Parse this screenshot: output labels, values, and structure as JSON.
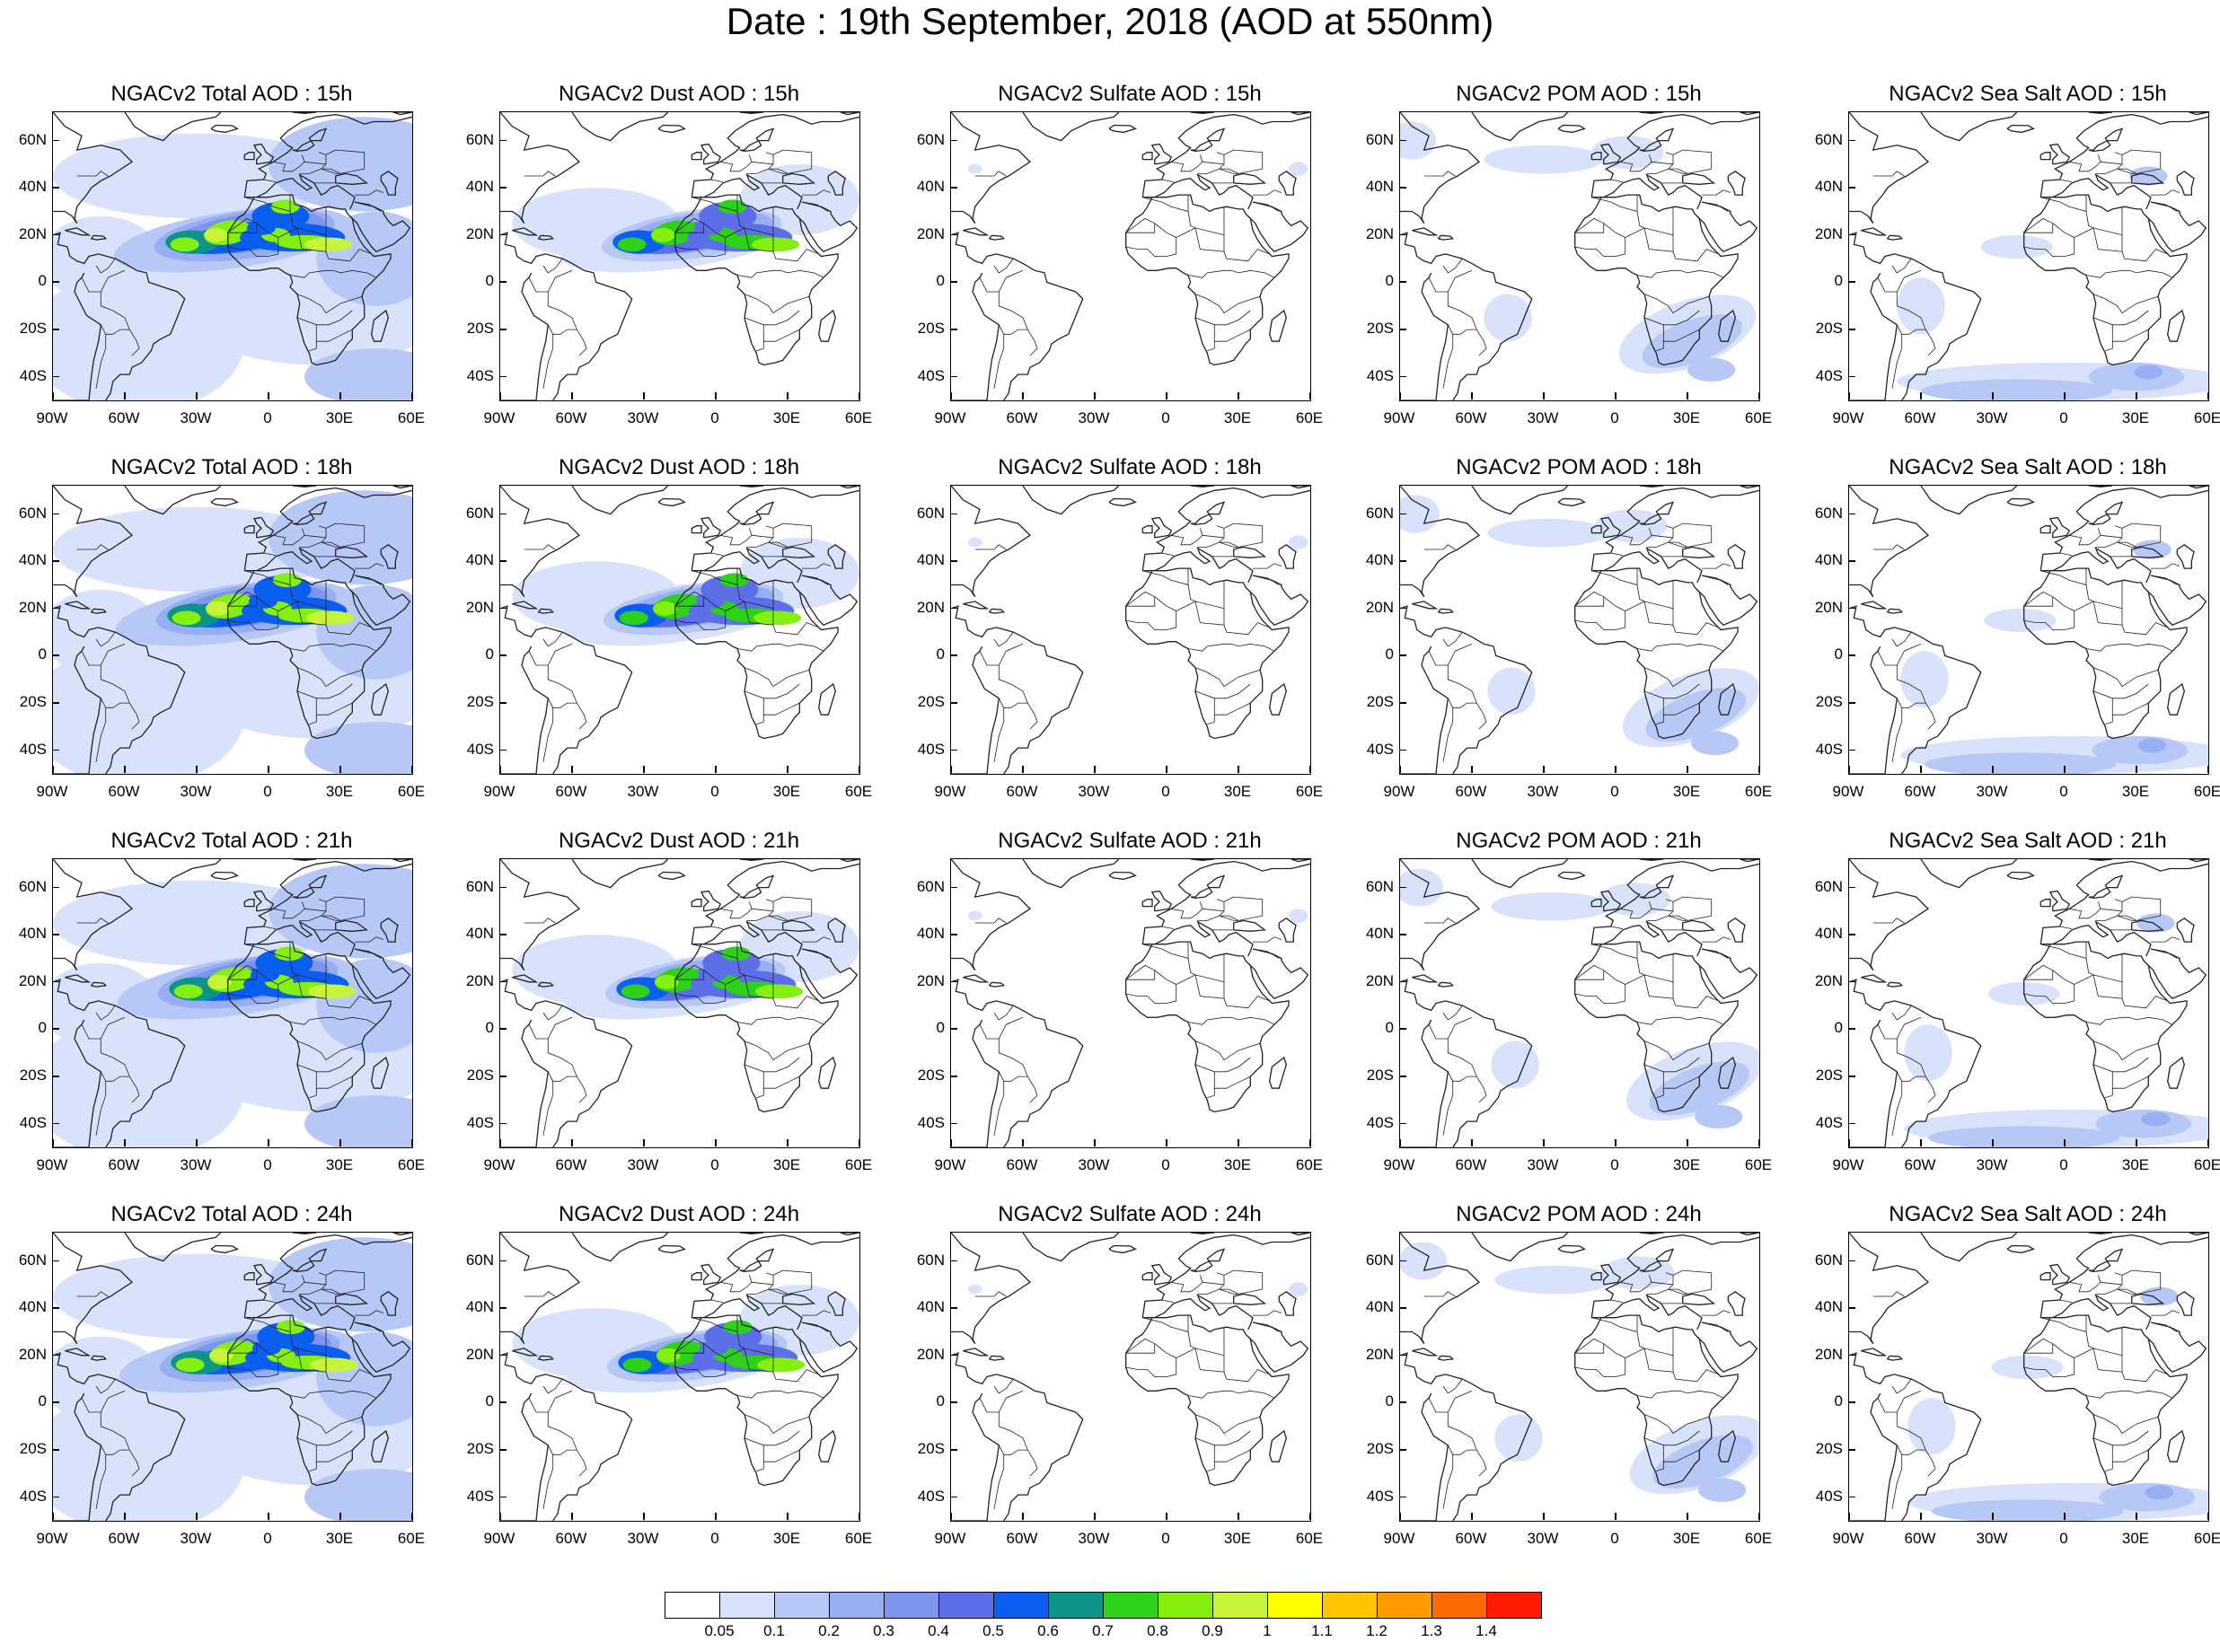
{
  "title": "Date : 19th September, 2018 (AOD at 550nm)",
  "axes": {
    "lat_labels": [
      "60N",
      "40N",
      "20N",
      "0",
      "20S",
      "40S"
    ],
    "lat_values": [
      60,
      40,
      20,
      0,
      -20,
      -40
    ],
    "lon_labels": [
      "90W",
      "60W",
      "30W",
      "0",
      "30E",
      "60E"
    ],
    "lon_values": [
      -90,
      -60,
      -30,
      0,
      30,
      60
    ],
    "lat_range": [
      -50,
      72
    ],
    "lon_range": [
      -90,
      60
    ]
  },
  "rows": [
    {
      "hour": "15h",
      "titles": [
        "NGACv2 Total AOD : 15h",
        "NGACv2 Dust AOD : 15h",
        "NGACv2 Sulfate AOD : 15h",
        "NGACv2 POM AOD : 15h",
        "NGACv2 Sea Salt AOD : 15h"
      ]
    },
    {
      "hour": "18h",
      "titles": [
        "NGACv2 Total AOD : 18h",
        "NGACv2 Dust AOD : 18h",
        "NGACv2 Sulfate AOD : 18h",
        "NGACv2 POM AOD : 18h",
        "NGACv2 Sea Salt AOD : 18h"
      ]
    },
    {
      "hour": "21h",
      "titles": [
        "NGACv2 Total AOD : 21h",
        "NGACv2 Dust AOD : 21h",
        "NGACv2 Sulfate AOD : 21h",
        "NGACv2 POM AOD : 21h",
        "NGACv2 Sea Salt AOD : 21h"
      ]
    },
    {
      "hour": "24h",
      "titles": [
        "NGACv2 Total AOD : 24h",
        "NGACv2 Dust AOD : 24h",
        "NGACv2 Sulfate AOD : 24h",
        "NGACv2 POM AOD : 24h",
        "NGACv2 Sea Salt  AOD : 24h"
      ]
    }
  ],
  "species": [
    "total",
    "dust",
    "sulfate",
    "pom",
    "seasalt"
  ],
  "colorbar": {
    "levels": [
      "0.05",
      "0.1",
      "0.2",
      "0.3",
      "0.4",
      "0.5",
      "0.6",
      "0.7",
      "0.8",
      "0.9",
      "1",
      "1.1",
      "1.2",
      "1.3",
      "1.4"
    ],
    "colors": [
      "#ffffff",
      "#d8e2fb",
      "#b7c8f7",
      "#98aef3",
      "#7d95ee",
      "#5c6ee8",
      "#0a5ef0",
      "#0d9488",
      "#2ed11a",
      "#85ef10",
      "#c6f43a",
      "#ffff00",
      "#ffc400",
      "#ff9a00",
      "#ff6a00",
      "#ff1a00"
    ]
  }
}
